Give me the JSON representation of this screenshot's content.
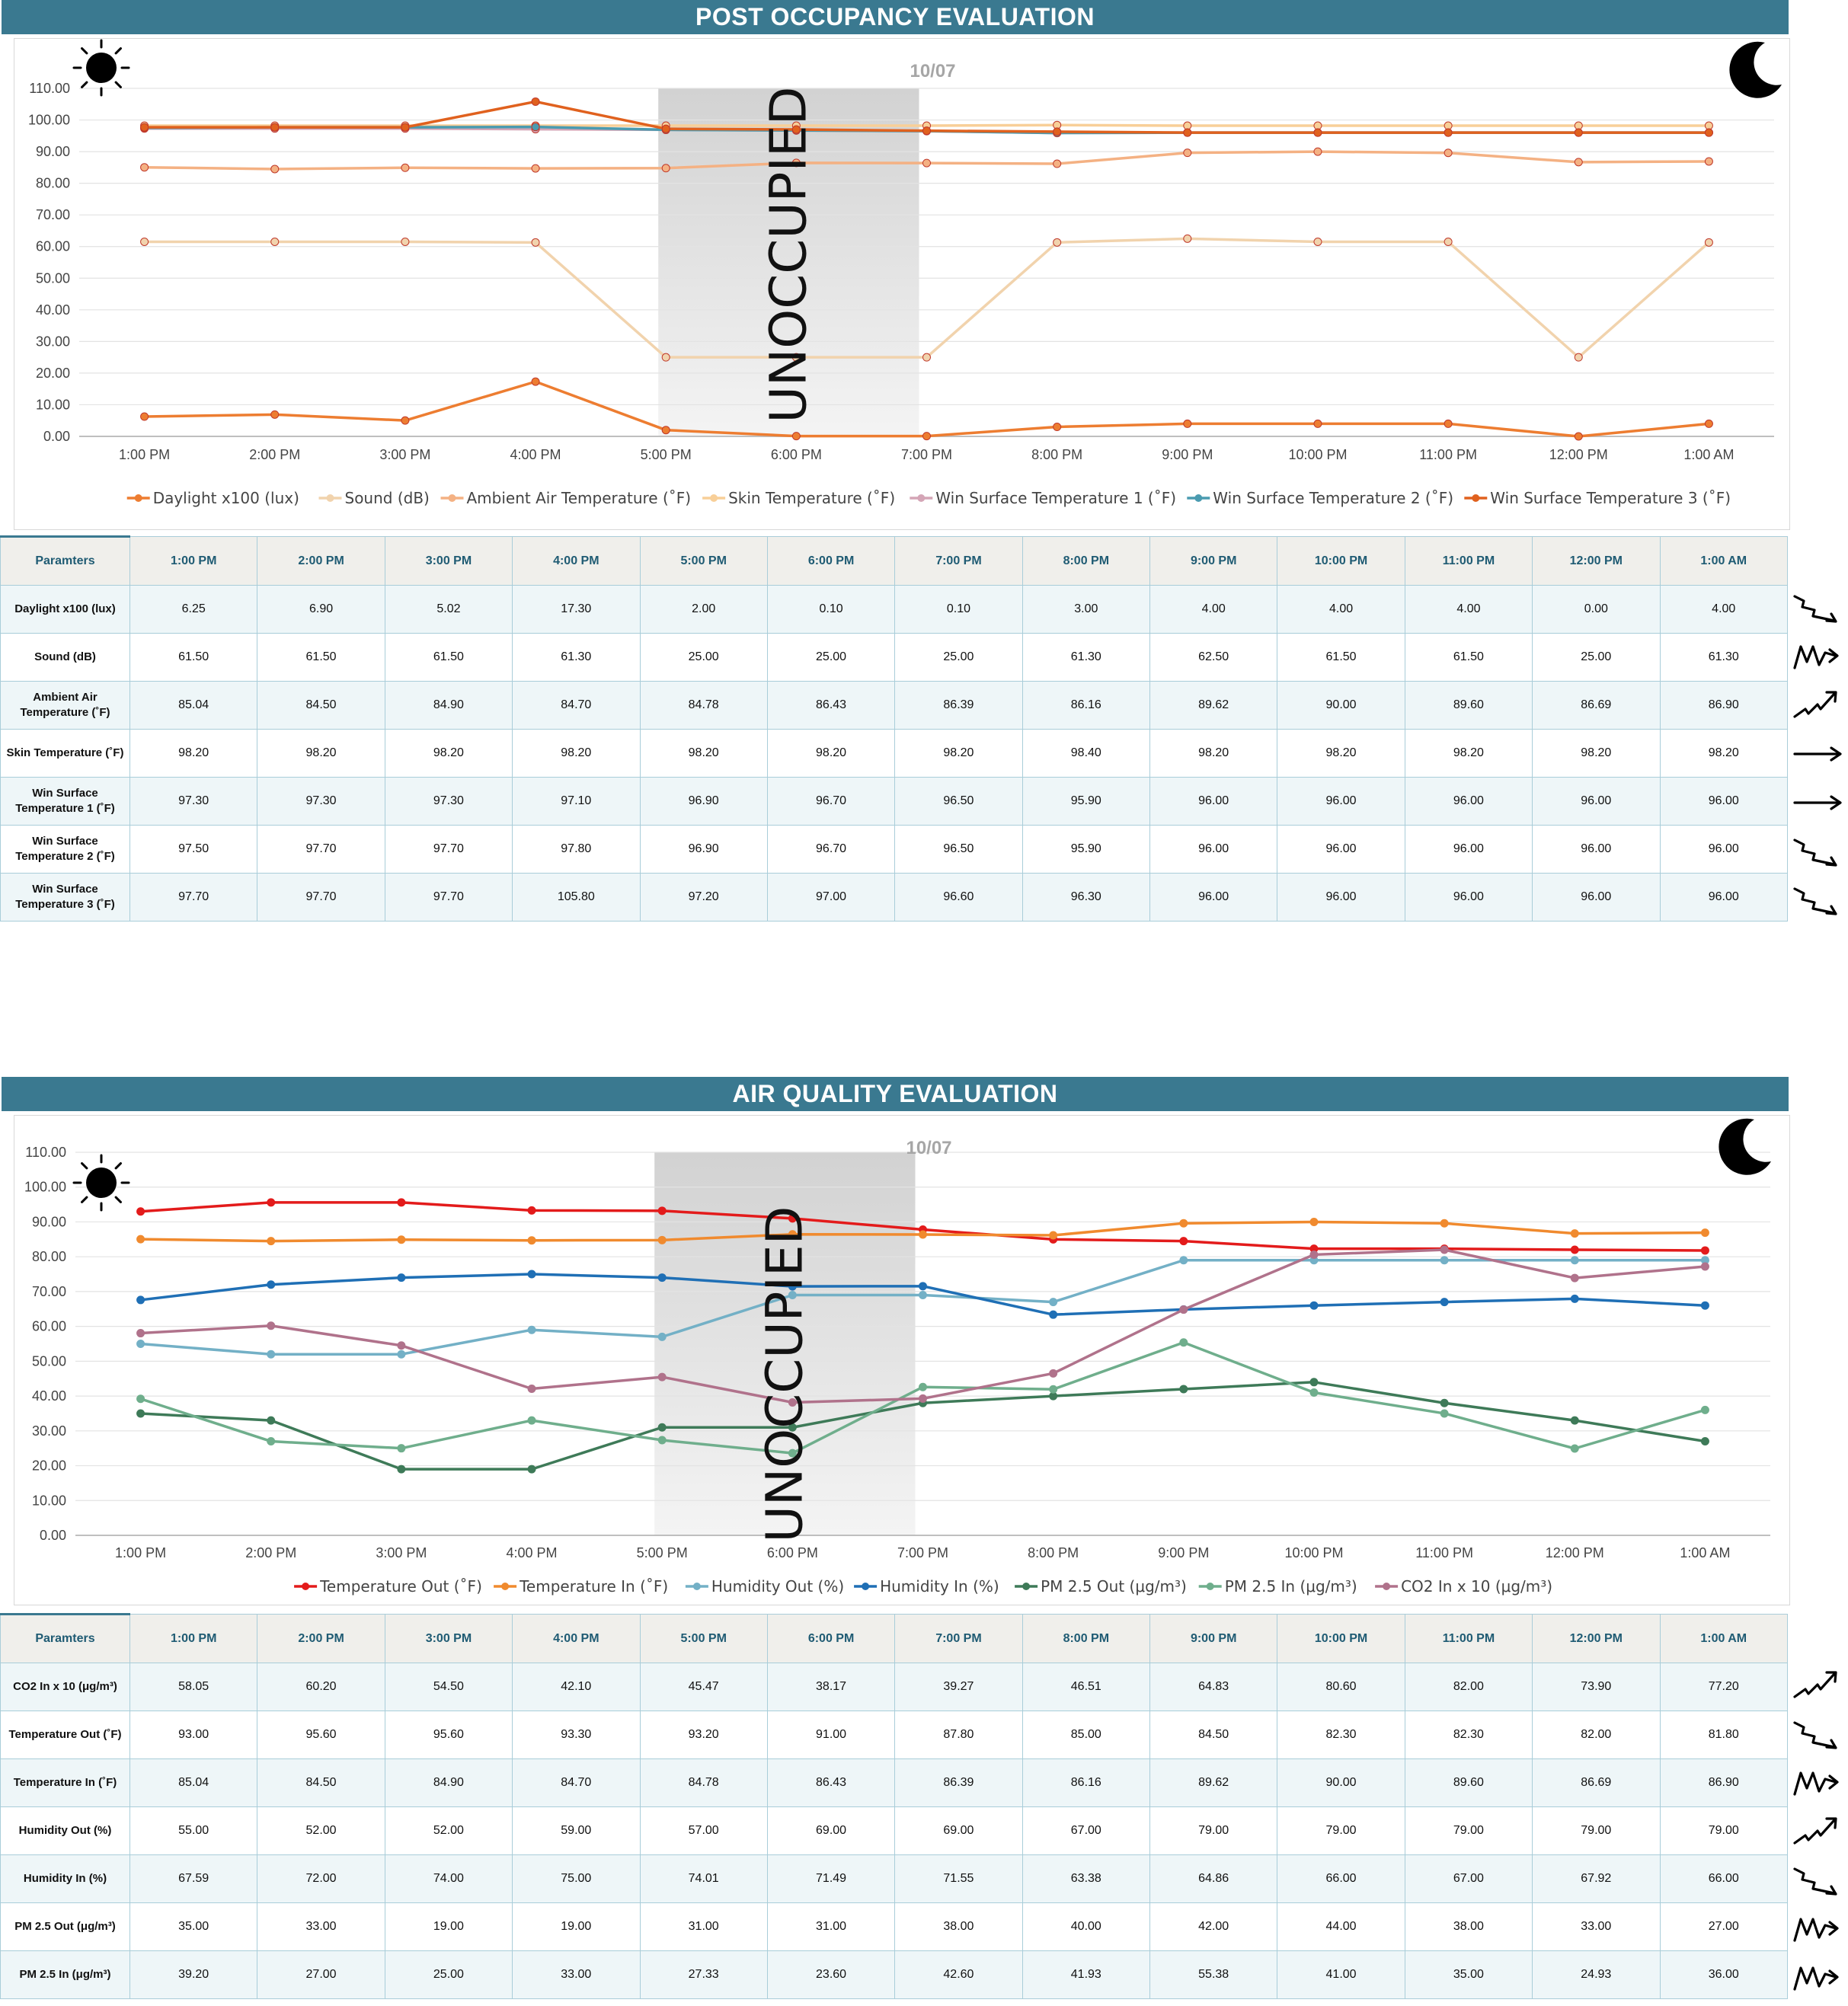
{
  "charts": [
    {
      "banner": "POST OCCUPANCY EVALUATION",
      "date": "10/07",
      "shade_label": "UNOCCUPIED",
      "param_header": "Paramters",
      "chart_data": {
        "type": "line",
        "x": [
          "1:00 PM",
          "2:00 PM",
          "3:00 PM",
          "4:00 PM",
          "5:00 PM",
          "6:00 PM",
          "7:00 PM",
          "8:00 PM",
          "9:00 PM",
          "10:00 PM",
          "11:00 PM",
          "12:00 PM",
          "1:00 AM"
        ],
        "ylim": [
          0,
          110
        ],
        "yticks": [
          "0.00",
          "10.00",
          "20.00",
          "30.00",
          "40.00",
          "50.00",
          "60.00",
          "70.00",
          "80.00",
          "90.00",
          "100.00",
          "110.00"
        ],
        "unoccupied_range": [
          "5:00 PM",
          "7:00 PM"
        ],
        "grid": true,
        "legend": "bottom",
        "series": [
          {
            "name": "Daylight x100 (lux)",
            "color": "#ed7d31",
            "values": [
              6.25,
              6.9,
              5.02,
              17.3,
              2.0,
              0.1,
              0.1,
              3.0,
              4.0,
              4.0,
              4.0,
              0.0,
              4.0
            ]
          },
          {
            "name": "Sound (dB)",
            "color": "#f1d3ad",
            "values": [
              61.5,
              61.5,
              61.5,
              61.3,
              25.0,
              25.0,
              25.0,
              61.3,
              62.5,
              61.5,
              61.5,
              25.0,
              61.3
            ]
          },
          {
            "name": "Ambient Air Temperature (˚F)",
            "color": "#f4b183",
            "values": [
              85.04,
              84.5,
              84.9,
              84.7,
              84.78,
              86.43,
              86.39,
              86.16,
              89.62,
              90.0,
              89.6,
              86.69,
              86.9
            ]
          },
          {
            "name": "Skin Temperature (˚F)",
            "color": "#f8cf98",
            "values": [
              98.2,
              98.2,
              98.2,
              98.2,
              98.2,
              98.2,
              98.2,
              98.4,
              98.2,
              98.2,
              98.2,
              98.2,
              98.2
            ]
          },
          {
            "name": "Win Surface Temperature 1 (˚F)",
            "color": "#d4a5b6",
            "values": [
              97.3,
              97.3,
              97.3,
              97.1,
              96.9,
              96.7,
              96.5,
              95.9,
              96.0,
              96.0,
              96.0,
              96.0,
              96.0
            ]
          },
          {
            "name": "Win Surface Temperature 2 (˚F)",
            "color": "#4a9bb0",
            "values": [
              97.5,
              97.7,
              97.7,
              97.8,
              96.9,
              96.7,
              96.5,
              95.9,
              96.0,
              96.0,
              96.0,
              96.0,
              96.0
            ]
          },
          {
            "name": "Win Surface Temperature 3 (˚F)",
            "color": "#e0611e",
            "values": [
              97.7,
              97.7,
              97.7,
              105.8,
              97.2,
              97.0,
              96.6,
              96.3,
              96.0,
              96.0,
              96.0,
              96.0,
              96.0
            ]
          }
        ]
      },
      "rows": [
        {
          "label": "Daylight x100 (lux)",
          "values": [
            "6.25",
            "6.90",
            "5.02",
            "17.30",
            "2.00",
            "0.10",
            "0.10",
            "3.00",
            "4.00",
            "4.00",
            "4.00",
            "0.00",
            "4.00"
          ],
          "trend": "down"
        },
        {
          "label": "Sound (dB)",
          "values": [
            "61.50",
            "61.50",
            "61.50",
            "61.30",
            "25.00",
            "25.00",
            "25.00",
            "61.30",
            "62.50",
            "61.50",
            "61.50",
            "25.00",
            "61.30"
          ],
          "trend": "volatile"
        },
        {
          "label": "Ambient Air Temperature (˚F)",
          "values": [
            "85.04",
            "84.50",
            "84.90",
            "84.70",
            "84.78",
            "86.43",
            "86.39",
            "86.16",
            "89.62",
            "90.00",
            "89.60",
            "86.69",
            "86.90"
          ],
          "trend": "up"
        },
        {
          "label": "Skin Temperature (˚F)",
          "values": [
            "98.20",
            "98.20",
            "98.20",
            "98.20",
            "98.20",
            "98.20",
            "98.20",
            "98.40",
            "98.20",
            "98.20",
            "98.20",
            "98.20",
            "98.20"
          ],
          "trend": "flat"
        },
        {
          "label": "Win Surface Temperature 1 (˚F)",
          "values": [
            "97.30",
            "97.30",
            "97.30",
            "97.10",
            "96.90",
            "96.70",
            "96.50",
            "95.90",
            "96.00",
            "96.00",
            "96.00",
            "96.00",
            "96.00"
          ],
          "trend": "flat"
        },
        {
          "label": "Win Surface Temperature 2 (˚F)",
          "values": [
            "97.50",
            "97.70",
            "97.70",
            "97.80",
            "96.90",
            "96.70",
            "96.50",
            "95.90",
            "96.00",
            "96.00",
            "96.00",
            "96.00",
            "96.00"
          ],
          "trend": "down"
        },
        {
          "label": "Win Surface Temperature 3 (˚F)",
          "values": [
            "97.70",
            "97.70",
            "97.70",
            "105.80",
            "97.20",
            "97.00",
            "96.60",
            "96.30",
            "96.00",
            "96.00",
            "96.00",
            "96.00",
            "96.00"
          ],
          "trend": "down"
        }
      ]
    },
    {
      "banner": "AIR QUALITY EVALUATION",
      "date": "10/07",
      "shade_label": "UNOCCUPIED",
      "param_header": "Paramters",
      "chart_data": {
        "type": "line",
        "x": [
          "1:00 PM",
          "2:00 PM",
          "3:00 PM",
          "4:00 PM",
          "5:00 PM",
          "6:00 PM",
          "7:00 PM",
          "8:00 PM",
          "9:00 PM",
          "10:00 PM",
          "11:00 PM",
          "12:00 PM",
          "1:00 AM"
        ],
        "ylim": [
          0,
          110
        ],
        "yticks": [
          "0.00",
          "10.00",
          "20.00",
          "30.00",
          "40.00",
          "50.00",
          "60.00",
          "70.00",
          "80.00",
          "90.00",
          "100.00",
          "110.00"
        ],
        "unoccupied_range": [
          "5:00 PM",
          "7:00 PM"
        ],
        "grid": true,
        "legend": "bottom",
        "series": [
          {
            "name": "Temperature Out (˚F)",
            "color": "#e31b1b",
            "values": [
              93.0,
              95.6,
              95.6,
              93.3,
              93.2,
              91.0,
              87.8,
              85.0,
              84.5,
              82.3,
              82.3,
              82.0,
              81.8
            ]
          },
          {
            "name": "Temperature In (˚F)",
            "color": "#f08a2e",
            "values": [
              85.04,
              84.5,
              84.9,
              84.7,
              84.78,
              86.43,
              86.39,
              86.16,
              89.62,
              90.0,
              89.6,
              86.69,
              86.9
            ]
          },
          {
            "name": "Humidity Out (%)",
            "color": "#73b0c6",
            "values": [
              55.0,
              52.0,
              52.0,
              59.0,
              57.0,
              69.0,
              69.0,
              67.0,
              79.0,
              79.0,
              79.0,
              79.0,
              79.0
            ]
          },
          {
            "name": "Humidity In (%)",
            "color": "#1f6fb5",
            "values": [
              67.59,
              72.0,
              74.0,
              75.0,
              74.01,
              71.49,
              71.55,
              63.38,
              64.86,
              66.0,
              67.0,
              67.92,
              66.0
            ]
          },
          {
            "name": "PM 2.5 Out (μg/m³)",
            "color": "#3e7a58",
            "values": [
              35.0,
              33.0,
              19.0,
              19.0,
              31.0,
              31.0,
              38.0,
              40.0,
              42.0,
              44.0,
              38.0,
              33.0,
              27.0
            ]
          },
          {
            "name": "PM 2.5 In (μg/m³)",
            "color": "#6fae8c",
            "values": [
              39.2,
              27.0,
              25.0,
              33.0,
              27.33,
              23.6,
              42.6,
              41.93,
              55.38,
              41.0,
              35.0,
              24.93,
              36.0
            ]
          },
          {
            "name": "CO2 In x 10 (μg/m³)",
            "color": "#b0728b",
            "values": [
              58.05,
              60.2,
              54.5,
              42.1,
              45.47,
              38.17,
              39.27,
              46.51,
              64.83,
              80.6,
              82.0,
              73.9,
              77.2
            ]
          }
        ]
      },
      "rows": [
        {
          "label": "CO2 In x 10 (μg/m³)",
          "values": [
            "58.05",
            "60.20",
            "54.50",
            "42.10",
            "45.47",
            "38.17",
            "39.27",
            "46.51",
            "64.83",
            "80.60",
            "82.00",
            "73.90",
            "77.20"
          ],
          "trend": "up"
        },
        {
          "label": "Temperature Out (˚F)",
          "values": [
            "93.00",
            "95.60",
            "95.60",
            "93.30",
            "93.20",
            "91.00",
            "87.80",
            "85.00",
            "84.50",
            "82.30",
            "82.30",
            "82.00",
            "81.80"
          ],
          "trend": "down"
        },
        {
          "label": "Temperature In (˚F)",
          "values": [
            "85.04",
            "84.50",
            "84.90",
            "84.70",
            "84.78",
            "86.43",
            "86.39",
            "86.16",
            "89.62",
            "90.00",
            "89.60",
            "86.69",
            "86.90"
          ],
          "trend": "volatile"
        },
        {
          "label": "Humidity Out (%)",
          "values": [
            "55.00",
            "52.00",
            "52.00",
            "59.00",
            "57.00",
            "69.00",
            "69.00",
            "67.00",
            "79.00",
            "79.00",
            "79.00",
            "79.00",
            "79.00"
          ],
          "trend": "up"
        },
        {
          "label": "Humidity In (%)",
          "values": [
            "67.59",
            "72.00",
            "74.00",
            "75.00",
            "74.01",
            "71.49",
            "71.55",
            "63.38",
            "64.86",
            "66.00",
            "67.00",
            "67.92",
            "66.00"
          ],
          "trend": "down"
        },
        {
          "label": "PM 2.5 Out (μg/m³)",
          "values": [
            "35.00",
            "33.00",
            "19.00",
            "19.00",
            "31.00",
            "31.00",
            "38.00",
            "40.00",
            "42.00",
            "44.00",
            "38.00",
            "33.00",
            "27.00"
          ],
          "trend": "volatile"
        },
        {
          "label": "PM 2.5 In (μg/m³)",
          "values": [
            "39.20",
            "27.00",
            "25.00",
            "33.00",
            "27.33",
            "23.60",
            "42.60",
            "41.93",
            "55.38",
            "41.00",
            "35.00",
            "24.93",
            "36.00"
          ],
          "trend": "volatile"
        }
      ]
    }
  ]
}
